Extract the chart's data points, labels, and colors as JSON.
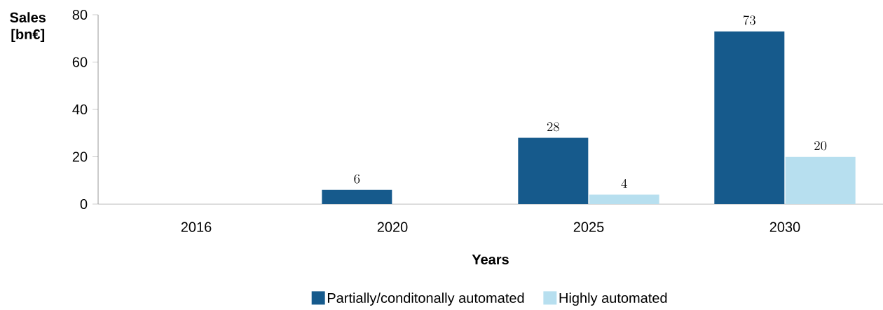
{
  "chart_data": {
    "type": "bar",
    "categories": [
      "2016",
      "2020",
      "2025",
      "2030"
    ],
    "series": [
      {
        "name": "Partially/conditonally automated",
        "color": "#165a8c",
        "values": [
          null,
          6,
          28,
          73
        ]
      },
      {
        "name": "Highly automated",
        "color": "#b7dfef",
        "values": [
          null,
          null,
          4,
          20
        ]
      }
    ],
    "xlabel": "Years",
    "ylabel": "Sales [bn€]",
    "ylim": [
      0,
      80
    ],
    "yticks": [
      0,
      20,
      40,
      60,
      80
    ],
    "data_labels": true,
    "legend": "bottom"
  }
}
